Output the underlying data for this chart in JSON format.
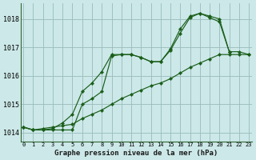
{
  "title": "Graphe pression niveau de la mer (hPa)",
  "background_color": "#cce8e8",
  "grid_color": "#99bbbb",
  "line_color": "#1a5e1a",
  "marker_color": "#1a5e1a",
  "x_ticks": [
    0,
    1,
    2,
    3,
    4,
    5,
    6,
    7,
    8,
    9,
    10,
    11,
    12,
    13,
    14,
    15,
    16,
    17,
    18,
    19,
    20,
    21,
    22,
    23
  ],
  "y_ticks": [
    1014,
    1015,
    1016,
    1017,
    1018
  ],
  "ylim": [
    1013.7,
    1018.55
  ],
  "xlim": [
    -0.3,
    23.3
  ],
  "series": [
    {
      "x": [
        0,
        1,
        2,
        3,
        4,
        5,
        6,
        7,
        8,
        9,
        10,
        11,
        12,
        13,
        14,
        15,
        16,
        17,
        18,
        19,
        20,
        21,
        22,
        23
      ],
      "y": [
        1014.2,
        1014.1,
        1014.1,
        1014.15,
        1014.35,
        1014.65,
        1015.45,
        1015.75,
        1016.15,
        1016.75,
        1016.75,
        1016.75,
        1016.65,
        1016.5,
        1016.5,
        1016.95,
        1017.65,
        1018.1,
        1018.2,
        1018.1,
        1018.0,
        1016.85,
        1016.85,
        1016.75
      ]
    },
    {
      "x": [
        0,
        1,
        2,
        3,
        4,
        5,
        6,
        7,
        8,
        9,
        10,
        11,
        12,
        13,
        14,
        15,
        16,
        17,
        18,
        19,
        20,
        21,
        22,
        23
      ],
      "y": [
        1014.2,
        1014.1,
        1014.1,
        1014.1,
        1014.1,
        1014.1,
        1015.0,
        1015.2,
        1015.45,
        1016.7,
        1016.75,
        1016.75,
        1016.65,
        1016.5,
        1016.5,
        1016.9,
        1017.5,
        1018.05,
        1018.2,
        1018.05,
        1017.9,
        1016.85,
        null,
        null
      ]
    },
    {
      "x": [
        0,
        1,
        2,
        3,
        4,
        5,
        6,
        7,
        8,
        9,
        10,
        11,
        12,
        13,
        14,
        15,
        16,
        17,
        18,
        19,
        20,
        21,
        22,
        23
      ],
      "y": [
        1014.2,
        1014.1,
        1014.15,
        1014.2,
        1014.25,
        1014.3,
        1014.5,
        1014.65,
        1014.8,
        1015.0,
        1015.2,
        1015.35,
        1015.5,
        1015.65,
        1015.75,
        1015.9,
        1016.1,
        1016.3,
        1016.45,
        1016.6,
        1016.75,
        1016.75,
        1016.75,
        1016.75
      ]
    }
  ]
}
